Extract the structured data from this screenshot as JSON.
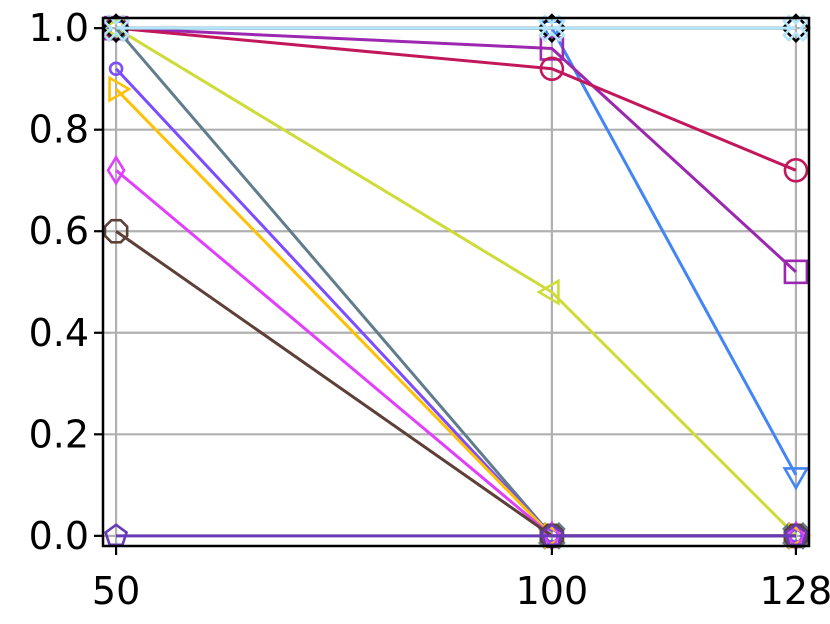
{
  "chart_data": {
    "type": "line",
    "title": "",
    "xlabel": "",
    "ylabel": "",
    "x": [
      50,
      100,
      128
    ],
    "x_tick_labels": [
      "50",
      "100",
      "128"
    ],
    "y_tick_labels": [
      "0.0",
      "0.2",
      "0.4",
      "0.6",
      "0.8",
      "1.0"
    ],
    "y_ticks": [
      0.0,
      0.2,
      0.4,
      0.6,
      0.8,
      1.0
    ],
    "xlim": [
      48.5,
      129.5
    ],
    "ylim": [
      -0.02,
      1.02
    ],
    "grid": true,
    "legend": "none",
    "series": [
      {
        "color": "#4285f4",
        "marker": "triangle-down",
        "values": [
          1.0,
          1.0,
          0.12
        ]
      },
      {
        "color": "#9c27b0",
        "marker": "square",
        "values": [
          1.0,
          0.96,
          0.52
        ]
      },
      {
        "color": "#c2185b",
        "marker": "circle",
        "values": [
          1.0,
          0.92,
          0.72
        ]
      },
      {
        "color": "#cddc39",
        "marker": "triangle-left",
        "values": [
          1.0,
          0.48,
          0.0
        ]
      },
      {
        "color": "#607d8b",
        "marker": "x",
        "values": [
          1.0,
          0.0,
          0.0
        ]
      },
      {
        "color": "#7c4dff",
        "marker": "small-circle",
        "values": [
          0.92,
          0.0,
          0.0
        ]
      },
      {
        "color": "#ffc107",
        "marker": "triangle-right",
        "values": [
          0.88,
          0.0,
          0.0
        ]
      },
      {
        "color": "#e040fb",
        "marker": "thin-diamond",
        "values": [
          0.72,
          0.0,
          0.0
        ]
      },
      {
        "color": "#5d4037",
        "marker": "octagon",
        "values": [
          0.6,
          0.0,
          0.0
        ]
      },
      {
        "color": "#673ab7",
        "marker": "pentagon",
        "values": [
          0.0,
          0.0,
          0.0
        ]
      },
      {
        "color": "#000000",
        "marker": "diamond",
        "values": [
          1.0,
          1.0,
          1.0
        ]
      },
      {
        "color": "#b3e5fc",
        "marker": "x",
        "values": [
          1.0,
          1.0,
          1.0
        ]
      }
    ]
  }
}
